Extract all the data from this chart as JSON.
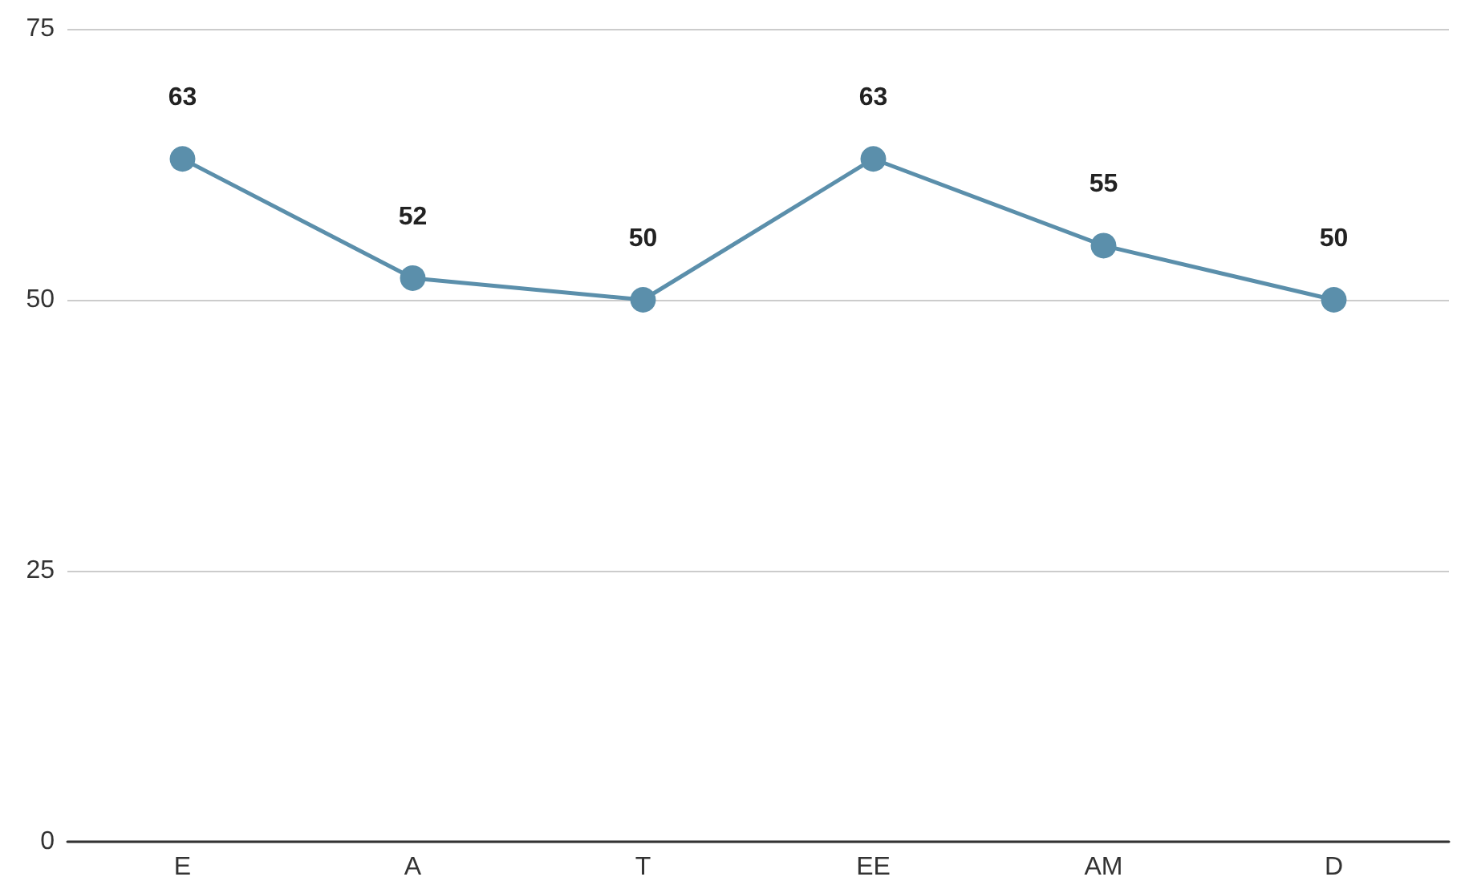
{
  "chart_data": {
    "type": "line",
    "categories": [
      "E",
      "A",
      "T",
      "EE",
      "AM",
      "D"
    ],
    "series": [
      {
        "color": "#5b8fab",
        "values": [
          63,
          52,
          50,
          63,
          55,
          50
        ]
      }
    ],
    "ylim": [
      0,
      75
    ],
    "yticks": [
      0,
      25,
      50,
      75
    ],
    "grid": "y",
    "marker": "circle",
    "line_style": "solid",
    "data_labels": true
  }
}
